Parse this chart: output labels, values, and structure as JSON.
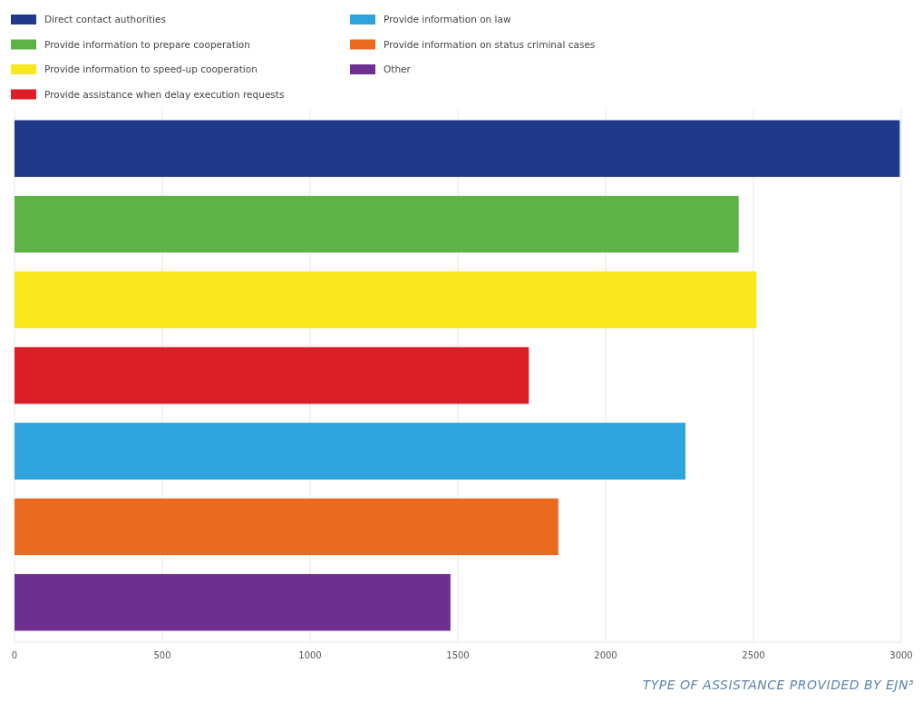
{
  "chart_data": {
    "type": "bar",
    "orientation": "horizontal",
    "categories": [
      null,
      null,
      null,
      null,
      null,
      null,
      null
    ],
    "series": [
      {
        "name": "Direct contact authorities",
        "color": "#1f3a8a",
        "values": [
          2995,
          null,
          null,
          null,
          null,
          null,
          null
        ]
      },
      {
        "name": "Provide information to prepare cooperation",
        "color": "#5db346",
        "values": [
          null,
          2450,
          null,
          null,
          null,
          null,
          null
        ]
      },
      {
        "name": "Provide information to speed-up cooperation",
        "color": "#f8e71c",
        "values": [
          null,
          null,
          2510,
          null,
          null,
          null,
          null
        ]
      },
      {
        "name": "Provide assistance when delay execution requests",
        "color": "#dc1f26",
        "values": [
          null,
          null,
          null,
          1740,
          null,
          null,
          null
        ]
      },
      {
        "name": "Provide information on law",
        "color": "#2ea3dc",
        "values": [
          null,
          null,
          null,
          null,
          2270,
          null,
          null
        ]
      },
      {
        "name": "Provide information on status criminal cases",
        "color": "#ec6a1f",
        "values": [
          null,
          null,
          null,
          null,
          null,
          1840,
          null
        ]
      },
      {
        "name": "Other",
        "color": "#6f2f91",
        "values": [
          null,
          null,
          null,
          null,
          null,
          null,
          1475
        ]
      }
    ],
    "xlim": [
      0,
      3000
    ],
    "xticks": [
      0,
      500,
      1000,
      1500,
      2000,
      2500,
      3000
    ],
    "grid": "x",
    "legend": "top",
    "annotations": [
      "TYPE OF ASSISTANCE PROVIDED BY EJN³"
    ]
  }
}
